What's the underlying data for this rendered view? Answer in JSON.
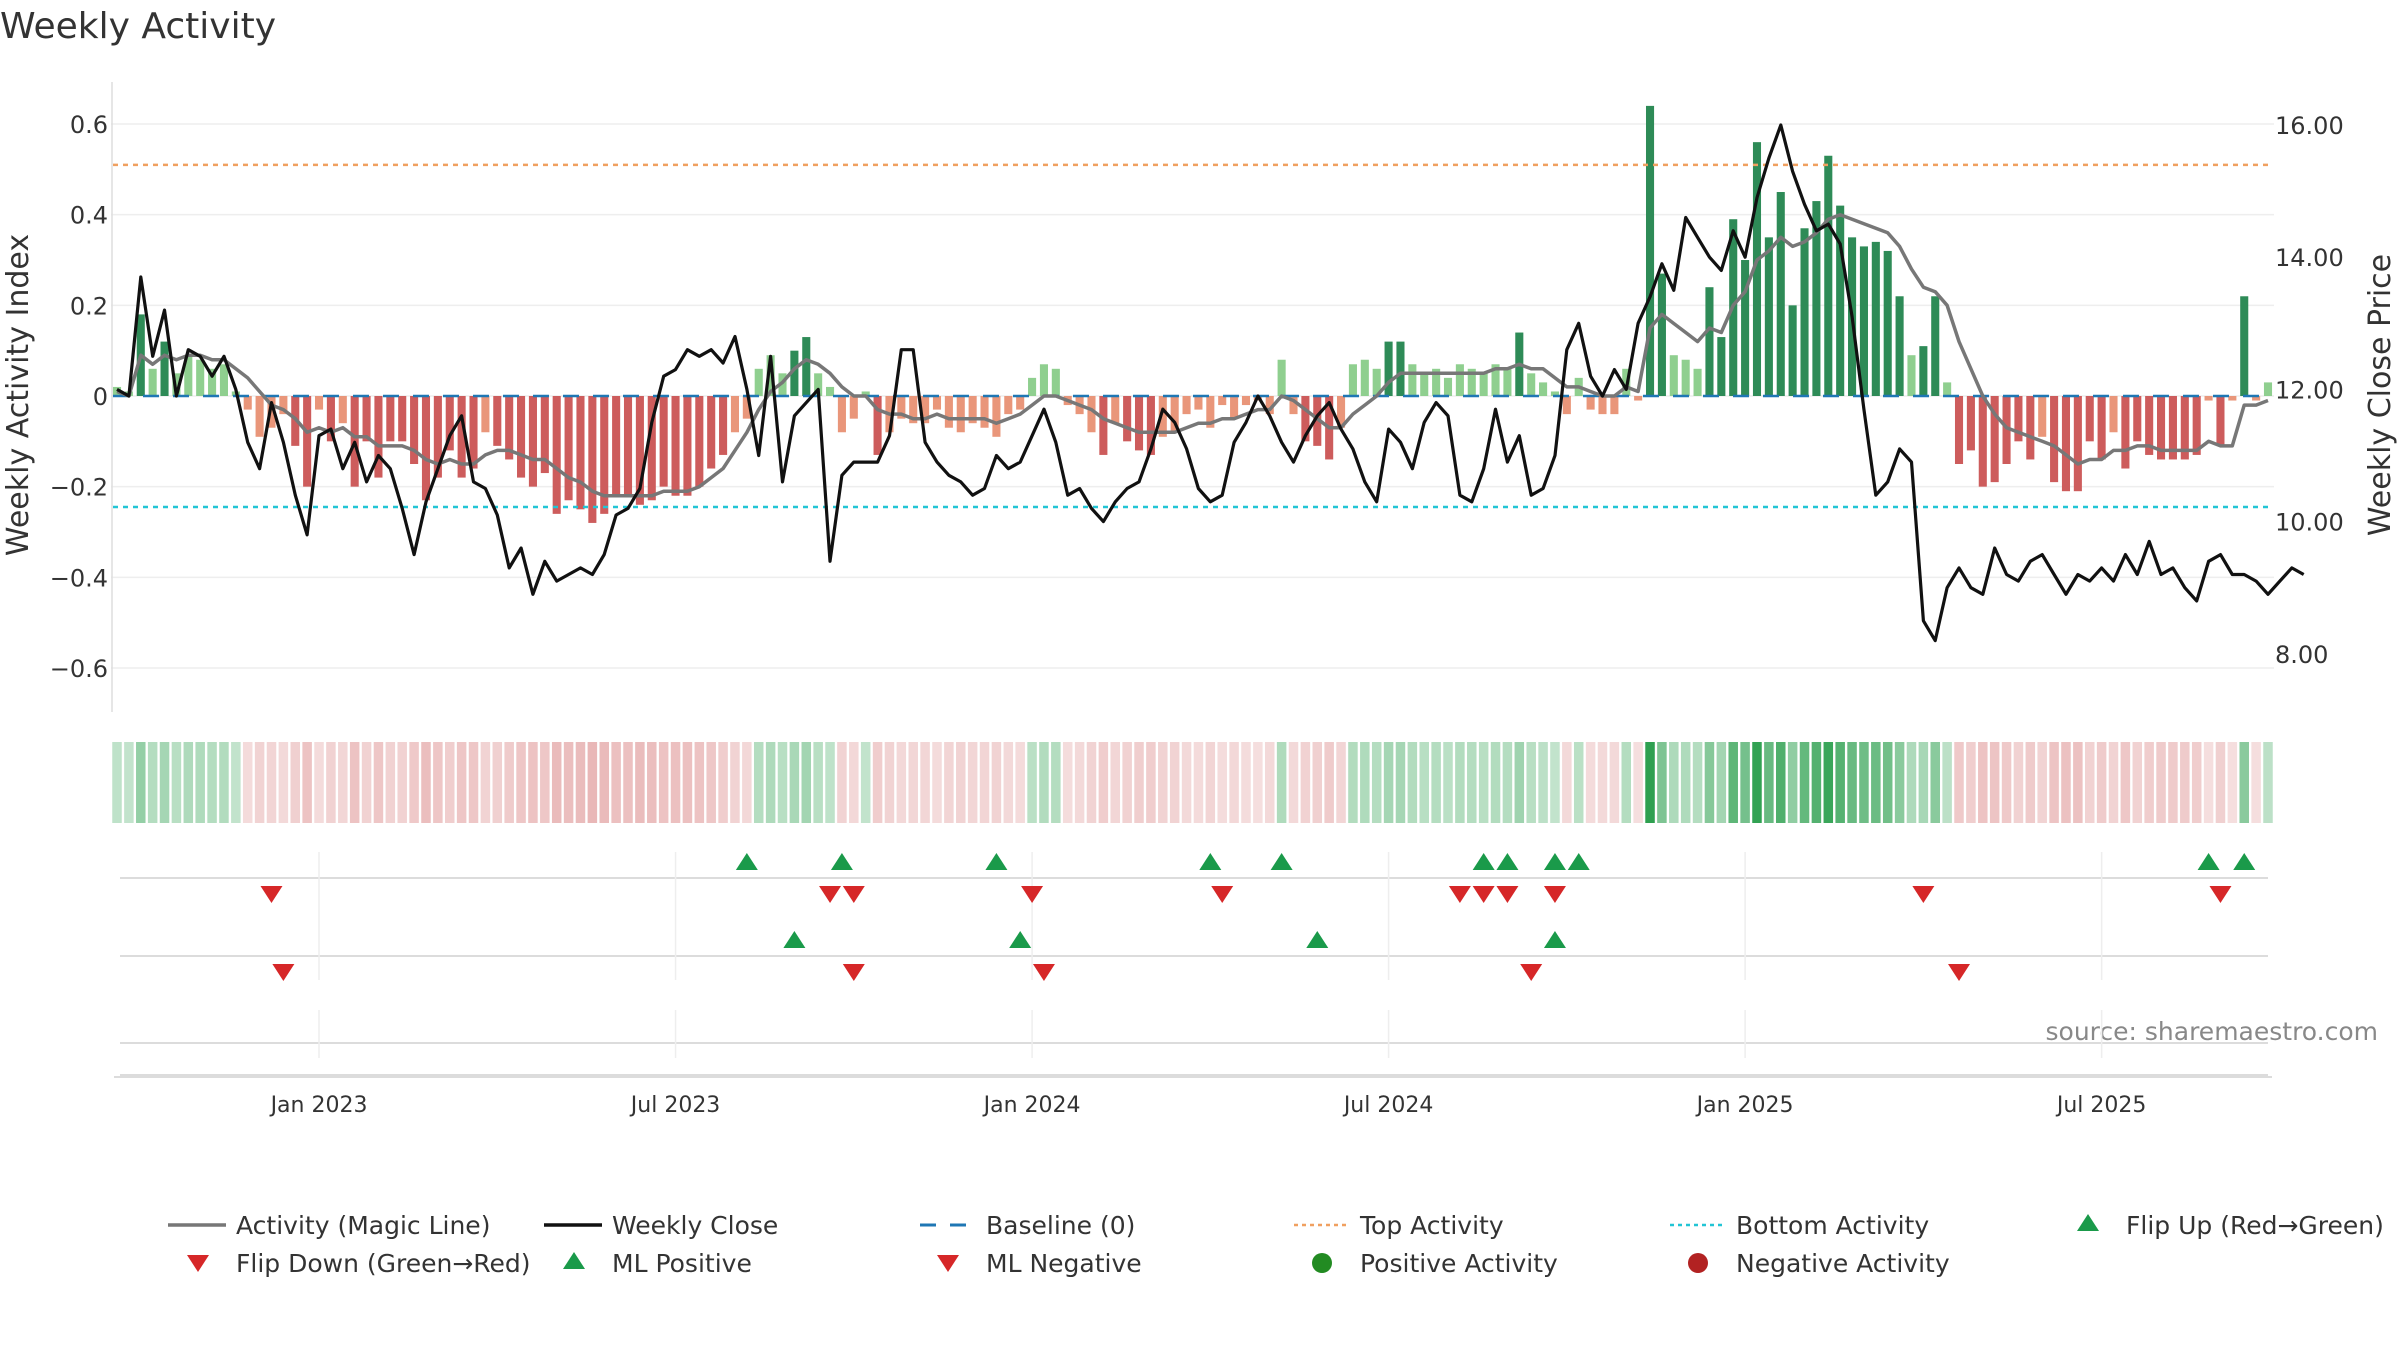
{
  "chart_data": {
    "type": "bar+line",
    "title": "Weekly Activity",
    "ylabel": "Weekly Activity Index",
    "y2label": "Weekly Close Price",
    "source": "source: sharemaestro.com",
    "ylim": [
      -0.7,
      0.7
    ],
    "y2lim": [
      7.4,
      16.6
    ],
    "yticks": [
      "0.6",
      "0.4",
      "0.2",
      "0",
      "−0.2",
      "−0.4",
      "−0.6"
    ],
    "ytick_values": [
      0.6,
      0.4,
      0.2,
      0,
      -0.2,
      -0.4,
      -0.6
    ],
    "y2ticks": [
      "16.00",
      "14.00",
      "12.00",
      "10.00",
      "8.00"
    ],
    "y2tick_values": [
      16,
      14,
      12,
      10,
      8
    ],
    "xticks": [
      "Jan 2023",
      "Jul 2023",
      "Jan 2024",
      "Jul 2024",
      "Jan 2025",
      "Jul 2025"
    ],
    "xtick_weeks": [
      17,
      47,
      77,
      107,
      137,
      167
    ],
    "n_weeks": 182,
    "top_activity": 0.51,
    "bottom_activity": -0.245,
    "baseline": 0,
    "colors": {
      "pos_strong": "#2e8b57",
      "pos_light": "#8fcf8f",
      "neg_strong": "#cd5c5c",
      "neg_light": "#e9967a",
      "close_line": "#111111",
      "magic_line": "#777777",
      "baseline": "#1f77b4",
      "top_line": "#f0a060",
      "bottom_line": "#22c5d5",
      "flip_up": "#1a9a4a",
      "flip_down": "#d62728"
    },
    "activity": [
      0.02,
      0.01,
      0.18,
      0.06,
      0.12,
      0.05,
      0.09,
      0.08,
      0.06,
      0.07,
      0.01,
      -0.03,
      -0.09,
      -0.07,
      -0.04,
      -0.11,
      -0.2,
      -0.03,
      -0.1,
      -0.06,
      -0.2,
      -0.1,
      -0.18,
      -0.1,
      -0.1,
      -0.15,
      -0.23,
      -0.18,
      -0.12,
      -0.18,
      -0.16,
      -0.08,
      -0.11,
      -0.14,
      -0.18,
      -0.2,
      -0.17,
      -0.26,
      -0.23,
      -0.25,
      -0.28,
      -0.26,
      -0.22,
      -0.22,
      -0.24,
      -0.23,
      -0.2,
      -0.22,
      -0.22,
      -0.2,
      -0.16,
      -0.13,
      -0.08,
      -0.05,
      0.06,
      0.09,
      0.05,
      0.1,
      0.13,
      0.05,
      0.02,
      -0.08,
      -0.05,
      0.01,
      -0.13,
      -0.08,
      -0.05,
      -0.06,
      -0.06,
      -0.03,
      -0.07,
      -0.08,
      -0.06,
      -0.07,
      -0.09,
      -0.04,
      -0.03,
      0.04,
      0.07,
      0.06,
      -0.02,
      -0.04,
      -0.08,
      -0.13,
      -0.06,
      -0.1,
      -0.12,
      -0.13,
      -0.09,
      -0.08,
      -0.04,
      -0.03,
      -0.07,
      -0.02,
      -0.05,
      -0.02,
      -0.01,
      -0.04,
      0.08,
      -0.04,
      -0.1,
      -0.11,
      -0.14,
      -0.07,
      0.07,
      0.08,
      0.06,
      0.12,
      0.12,
      0.07,
      0.05,
      0.06,
      0.04,
      0.07,
      0.06,
      0.05,
      0.07,
      0.06,
      0.14,
      0.05,
      0.03,
      0.01,
      -0.04,
      0.04,
      -0.03,
      -0.04,
      -0.04,
      0.06,
      -0.01,
      0.64,
      0.27,
      0.09,
      0.08,
      0.06,
      0.24,
      0.13,
      0.39,
      0.3,
      0.56,
      0.35,
      0.45,
      0.2,
      0.37,
      0.43,
      0.53,
      0.42,
      0.35,
      0.33,
      0.34,
      0.32,
      0.22,
      0.09,
      0.11,
      0.22,
      0.03,
      -0.15,
      -0.12,
      -0.2,
      -0.19,
      -0.15,
      -0.1,
      -0.14,
      -0.09,
      -0.19,
      -0.21,
      -0.21,
      -0.1,
      -0.14,
      -0.08,
      -0.16,
      -0.1,
      -0.13,
      -0.14,
      -0.14,
      -0.14,
      -0.13,
      -0.01,
      -0.11,
      -0.01,
      0.22,
      -0.01,
      0.03
    ],
    "close": [
      12.0,
      11.9,
      13.7,
      12.5,
      13.2,
      11.9,
      12.6,
      12.5,
      12.2,
      12.5,
      12.0,
      11.2,
      10.8,
      11.8,
      11.2,
      10.4,
      9.8,
      11.3,
      11.4,
      10.8,
      11.2,
      10.6,
      11.0,
      10.8,
      10.2,
      9.5,
      10.3,
      10.8,
      11.3,
      11.6,
      10.6,
      10.5,
      10.1,
      9.3,
      9.6,
      8.9,
      9.4,
      9.1,
      9.2,
      9.3,
      9.2,
      9.5,
      10.1,
      10.2,
      10.5,
      11.5,
      12.2,
      12.3,
      12.6,
      12.5,
      12.6,
      12.4,
      12.8,
      12.0,
      11.0,
      12.5,
      10.6,
      11.6,
      11.8,
      12.0,
      9.4,
      10.7,
      10.9,
      10.9,
      10.9,
      11.3,
      12.6,
      12.6,
      11.2,
      10.9,
      10.7,
      10.6,
      10.4,
      10.5,
      11.0,
      10.8,
      10.9,
      11.3,
      11.7,
      11.2,
      10.4,
      10.5,
      10.2,
      10.0,
      10.3,
      10.5,
      10.6,
      11.1,
      11.7,
      11.5,
      11.1,
      10.5,
      10.3,
      10.4,
      11.2,
      11.5,
      11.9,
      11.6,
      11.2,
      10.9,
      11.3,
      11.6,
      11.8,
      11.4,
      11.1,
      10.6,
      10.3,
      11.4,
      11.2,
      10.8,
      11.5,
      11.8,
      11.6,
      10.4,
      10.3,
      10.8,
      11.7,
      10.9,
      11.3,
      10.4,
      10.5,
      11.0,
      12.6,
      13.0,
      12.2,
      11.9,
      12.3,
      12.0,
      13.0,
      13.4,
      13.9,
      13.5,
      14.6,
      14.3,
      14.0,
      13.8,
      14.4,
      14.0,
      14.9,
      15.5,
      16.0,
      15.3,
      14.8,
      14.4,
      14.5,
      14.2,
      13.1,
      11.7,
      10.4,
      10.6,
      11.1,
      10.9,
      8.5,
      8.2,
      9.0,
      9.3,
      9.0,
      8.9,
      9.6,
      9.2,
      9.1,
      9.4,
      9.5,
      9.2,
      8.9,
      9.2,
      9.1,
      9.3,
      9.1,
      9.5,
      9.2,
      9.7,
      9.2,
      9.3,
      9.0,
      8.8,
      9.4,
      9.5,
      9.2,
      9.2,
      9.1,
      8.9,
      9.1,
      9.3,
      9.2
    ],
    "magic_line": [
      0.01,
      0.0,
      0.09,
      0.07,
      0.09,
      0.08,
      0.09,
      0.09,
      0.08,
      0.08,
      0.06,
      0.04,
      0.01,
      -0.02,
      -0.03,
      -0.05,
      -0.08,
      -0.07,
      -0.08,
      -0.07,
      -0.09,
      -0.09,
      -0.11,
      -0.11,
      -0.11,
      -0.12,
      -0.14,
      -0.15,
      -0.14,
      -0.15,
      -0.15,
      -0.13,
      -0.12,
      -0.12,
      -0.13,
      -0.14,
      -0.14,
      -0.16,
      -0.18,
      -0.19,
      -0.21,
      -0.22,
      -0.22,
      -0.22,
      -0.22,
      -0.22,
      -0.21,
      -0.21,
      -0.21,
      -0.2,
      -0.18,
      -0.16,
      -0.12,
      -0.08,
      -0.03,
      0.01,
      0.03,
      0.06,
      0.08,
      0.07,
      0.05,
      0.02,
      0.0,
      0.0,
      -0.03,
      -0.04,
      -0.04,
      -0.05,
      -0.05,
      -0.04,
      -0.05,
      -0.05,
      -0.05,
      -0.05,
      -0.06,
      -0.05,
      -0.04,
      -0.02,
      0.0,
      0.0,
      -0.01,
      -0.02,
      -0.03,
      -0.05,
      -0.06,
      -0.07,
      -0.08,
      -0.08,
      -0.08,
      -0.08,
      -0.07,
      -0.06,
      -0.06,
      -0.05,
      -0.05,
      -0.04,
      -0.03,
      -0.03,
      0.0,
      -0.01,
      -0.03,
      -0.05,
      -0.07,
      -0.07,
      -0.04,
      -0.02,
      0.0,
      0.03,
      0.05,
      0.05,
      0.05,
      0.05,
      0.05,
      0.05,
      0.05,
      0.05,
      0.06,
      0.06,
      0.07,
      0.06,
      0.06,
      0.04,
      0.02,
      0.02,
      0.01,
      0.0,
      0.0,
      0.02,
      0.01,
      0.15,
      0.18,
      0.16,
      0.14,
      0.12,
      0.15,
      0.14,
      0.2,
      0.23,
      0.3,
      0.32,
      0.35,
      0.33,
      0.34,
      0.36,
      0.39,
      0.4,
      0.39,
      0.38,
      0.37,
      0.36,
      0.33,
      0.28,
      0.24,
      0.23,
      0.2,
      0.12,
      0.06,
      0.0,
      -0.04,
      -0.07,
      -0.08,
      -0.09,
      -0.1,
      -0.11,
      -0.13,
      -0.15,
      -0.14,
      -0.14,
      -0.12,
      -0.12,
      -0.11,
      -0.11,
      -0.12,
      -0.12,
      -0.12,
      -0.12,
      -0.1,
      -0.11,
      -0.11,
      -0.02,
      -0.02,
      -0.01
    ],
    "flip_up_weeks": [
      53,
      61,
      74,
      92,
      98,
      115,
      117,
      121,
      123,
      176,
      179
    ],
    "flip_down_weeks": [
      13,
      60,
      62,
      77,
      93,
      113,
      115,
      117,
      121,
      152,
      177
    ],
    "ml_positive_weeks": [
      57,
      76,
      101,
      121
    ],
    "ml_negative_weeks": [
      14,
      62,
      78,
      119,
      155
    ],
    "legend": [
      {
        "label": "Activity (Magic Line)",
        "symbol": "line",
        "color": "#777777"
      },
      {
        "label": "Weekly Close",
        "symbol": "line",
        "color": "#111111"
      },
      {
        "label": "Baseline (0)",
        "symbol": "dash",
        "color": "#1f77b4"
      },
      {
        "label": "Top Activity",
        "symbol": "dot",
        "color": "#f0a060"
      },
      {
        "label": "Bottom Activity",
        "symbol": "dot",
        "color": "#22c5d5"
      },
      {
        "label": "Flip Up (Red→Green)",
        "symbol": "tri-up",
        "color": "#1a9a4a"
      },
      {
        "label": "Flip Down (Green→Red)",
        "symbol": "tri-down",
        "color": "#d62728"
      },
      {
        "label": "ML Positive",
        "symbol": "tri-up",
        "color": "#1a9a4a"
      },
      {
        "label": "ML Negative",
        "symbol": "tri-down",
        "color": "#d62728"
      },
      {
        "label": "Positive Activity",
        "symbol": "circle",
        "color": "#228b22"
      },
      {
        "label": "Negative Activity",
        "symbol": "circle",
        "color": "#b22222"
      }
    ]
  }
}
